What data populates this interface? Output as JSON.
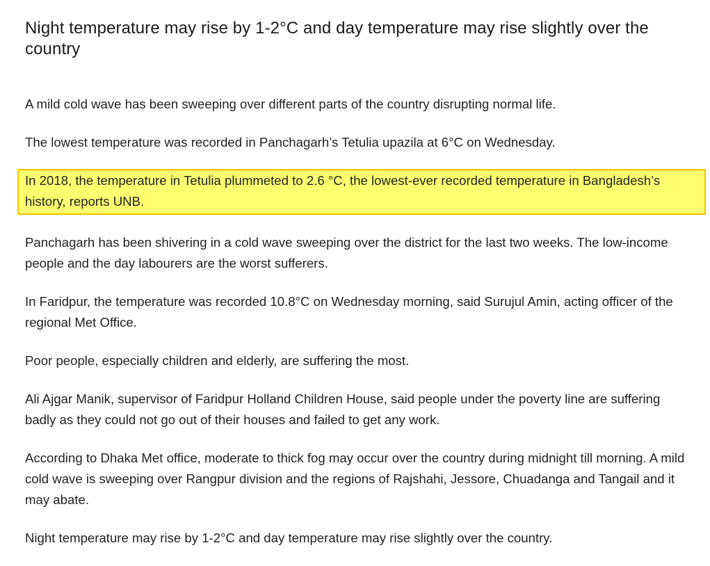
{
  "article": {
    "title": "Night temperature may rise by 1-2°C and day temperature may rise slightly over the country",
    "highlight_colors": {
      "fill": "#ffff70",
      "border": "#f5c400"
    },
    "paragraphs": [
      "A mild cold wave has been sweeping over different parts of the country disrupting normal life.",
      "The lowest temperature was recorded in Panchagarh’s Tetulia upazila at 6°C on Wednesday.",
      "In 2018, the temperature in Tetulia plummeted to 2.6 °C, the lowest-ever recorded temperature in Bangladesh’s history, reports UNB.",
      "Panchagarh has been shivering in a cold wave sweeping over the district for the last two weeks. The low-income people and the day labourers are the worst sufferers.",
      "In Faridpur, the temperature was recorded 10.8°C on Wednesday morning, said Surujul Amin, acting officer of the regional Met Office.",
      "Poor people, especially children and elderly, are suffering the most.",
      "Ali Ajgar Manik, supervisor of Faridpur Holland Children House, said people under the poverty line are suffering badly as they could not go out of their houses and failed to get any work.",
      "According to Dhaka Met office, moderate to thick fog may occur over the country during midnight till morning. A mild cold wave is sweeping over Rangpur division and the regions of Rajshahi, Jessore, Chuadanga and Tangail and it may abate.",
      "Night temperature may rise by 1-2°C and day temperature may rise slightly over the country."
    ]
  }
}
